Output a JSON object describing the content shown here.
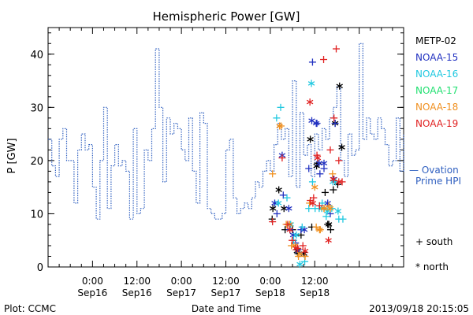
{
  "chart_data": {
    "type": "scatter",
    "title": "Hemispheric Power [GW]",
    "ylabel": "P [GW]",
    "xlabel": "Date and Time",
    "xlim": [
      -12,
      84
    ],
    "ylim": [
      0,
      45
    ],
    "yticks": [
      0,
      10,
      20,
      30,
      40
    ],
    "xticks": [
      {
        "x": 0,
        "time": "0:00",
        "date": "Sep16"
      },
      {
        "x": 12,
        "time": "12:00",
        "date": "Sep16"
      },
      {
        "x": 24,
        "time": "0:00",
        "date": "Sep17"
      },
      {
        "x": 36,
        "time": "12:00",
        "date": "Sep17"
      },
      {
        "x": 48,
        "time": "0:00",
        "date": "Sep18"
      },
      {
        "x": 60,
        "time": "12:00",
        "date": "Sep18"
      }
    ],
    "ovation": {
      "name": "Ovation Prime HPI",
      "label_line1": "— Ovation",
      "label_line2": "Prime HPI",
      "color": "#3060c0",
      "x": [
        -12,
        -11,
        -10,
        -9,
        -8,
        -7,
        -6,
        -5,
        -4,
        -3,
        -2,
        -1,
        0,
        1,
        2,
        3,
        4,
        5,
        6,
        7,
        8,
        9,
        10,
        11,
        12,
        13,
        14,
        15,
        16,
        17,
        18,
        19,
        20,
        21,
        22,
        23,
        24,
        25,
        26,
        27,
        28,
        29,
        30,
        31,
        32,
        33,
        34,
        35,
        36,
        37,
        38,
        39,
        40,
        41,
        42,
        43,
        44,
        45,
        46,
        47,
        48,
        49,
        50,
        51,
        52,
        53,
        54,
        55,
        56,
        57,
        58,
        59,
        60,
        61,
        62,
        63,
        64,
        65,
        66,
        67,
        68,
        69,
        70,
        71,
        72,
        73,
        74,
        75,
        76,
        77,
        78,
        79,
        80,
        81,
        82,
        83,
        84
      ],
      "values": [
        24,
        19,
        17,
        24,
        26,
        20,
        20,
        12,
        22,
        25,
        22,
        23,
        15,
        9,
        20,
        30,
        11,
        19,
        23,
        19,
        20,
        18,
        9,
        26,
        10,
        11,
        22,
        20,
        26,
        41,
        30,
        16,
        28,
        25,
        27,
        26,
        22,
        20,
        28,
        18,
        12,
        29,
        27,
        11,
        10,
        9,
        9,
        10,
        22,
        24,
        13,
        10,
        11,
        12,
        11,
        13,
        16,
        15,
        18,
        20,
        18,
        23,
        27,
        24,
        26,
        17,
        35,
        15,
        29,
        21,
        23,
        17,
        25,
        22,
        26,
        24,
        28,
        30,
        34,
        20,
        17,
        25,
        21,
        22,
        42,
        24,
        28,
        25,
        24,
        28,
        26,
        23,
        19,
        20,
        28,
        18,
        25
      ]
    },
    "series": [
      {
        "name": "METP-02",
        "color": "#000000",
        "south": [
          [
            48.5,
            9
          ],
          [
            52,
            7
          ],
          [
            54,
            7
          ],
          [
            55.5,
            2.5
          ],
          [
            56.3,
            6
          ],
          [
            59.2,
            7.5
          ],
          [
            60.8,
            19.5
          ],
          [
            62.8,
            14
          ],
          [
            63.5,
            8
          ],
          [
            64.3,
            7
          ],
          [
            65,
            14.5
          ],
          [
            66.2,
            15.5
          ]
        ],
        "north": [
          [
            48.7,
            11
          ],
          [
            50.3,
            14.5
          ],
          [
            51.7,
            11
          ],
          [
            55.2,
            3
          ],
          [
            57.1,
            2.5
          ],
          [
            58.8,
            24
          ],
          [
            60.5,
            19
          ],
          [
            63.8,
            8
          ],
          [
            65.5,
            27
          ],
          [
            66.7,
            34
          ],
          [
            67.3,
            22.5
          ]
        ]
      },
      {
        "name": "NOAA-15",
        "color": "#2030c0",
        "south": [
          [
            49.8,
            10
          ],
          [
            51.5,
            13.5
          ],
          [
            53.3,
            7
          ],
          [
            54.8,
            4.5
          ],
          [
            56.3,
            7
          ],
          [
            58.4,
            18.5
          ],
          [
            59.4,
            38.5
          ],
          [
            60.6,
            27
          ],
          [
            61.4,
            17.5
          ],
          [
            62.5,
            18.5
          ],
          [
            64.2,
            10
          ],
          [
            65.5,
            27
          ]
        ],
        "north": [
          [
            49.2,
            12
          ],
          [
            51.2,
            21
          ],
          [
            53,
            11
          ],
          [
            54.2,
            6
          ],
          [
            55.6,
            3
          ],
          [
            57.2,
            7
          ],
          [
            59.2,
            27.5
          ],
          [
            60.4,
            27
          ],
          [
            61.2,
            19.5
          ],
          [
            62.5,
            19.5
          ],
          [
            63.5,
            12
          ],
          [
            65.2,
            16.5
          ]
        ]
      },
      {
        "name": "NOAA-16",
        "color": "#20c8e0",
        "south": [
          [
            49.7,
            28
          ],
          [
            50.8,
            30
          ],
          [
            52.5,
            13
          ],
          [
            54.3,
            5
          ],
          [
            56.6,
            7.5
          ],
          [
            57.3,
            1
          ],
          [
            58.4,
            11
          ],
          [
            59.4,
            16
          ],
          [
            60.1,
            11
          ],
          [
            61.2,
            11
          ],
          [
            62,
            12
          ],
          [
            63.1,
            9.5
          ],
          [
            64.6,
            11
          ],
          [
            65.6,
            16
          ],
          [
            66.5,
            9
          ],
          [
            67.6,
            9
          ]
        ],
        "north": [
          [
            50.2,
            12
          ],
          [
            53.5,
            8
          ],
          [
            55,
            6
          ],
          [
            56,
            0.5
          ],
          [
            59.1,
            34.5
          ],
          [
            61.9,
            11
          ],
          [
            63.4,
            10.5
          ],
          [
            64.9,
            16
          ],
          [
            66.3,
            10.5
          ]
        ]
      },
      {
        "name": "NOAA-17",
        "color": "#20e070",
        "south": [],
        "north": []
      },
      {
        "name": "NOAA-18",
        "color": "#f09020",
        "south": [
          [
            48.6,
            17.5
          ],
          [
            50.9,
            26.5
          ],
          [
            52.3,
            8
          ],
          [
            53.7,
            4
          ],
          [
            55.6,
            2
          ],
          [
            57.4,
            2
          ],
          [
            58.6,
            12
          ],
          [
            60.4,
            7.5
          ],
          [
            61.5,
            7
          ],
          [
            62.5,
            11
          ],
          [
            63.8,
            11.5
          ],
          [
            64.8,
            17.5
          ]
        ],
        "north": [
          [
            50.5,
            26.5
          ],
          [
            53.2,
            8
          ],
          [
            54.7,
            4
          ],
          [
            56,
            2.5
          ],
          [
            60,
            15
          ],
          [
            61.3,
            7
          ],
          [
            62.5,
            11
          ],
          [
            64.2,
            11
          ]
        ]
      },
      {
        "name": "NOAA-19",
        "color": "#e02020",
        "south": [
          [
            48.6,
            8.5
          ],
          [
            51.2,
            20.5
          ],
          [
            52.7,
            8
          ],
          [
            53.9,
            5
          ],
          [
            55.4,
            3.5
          ],
          [
            56.8,
            4
          ],
          [
            58.8,
            12.5
          ],
          [
            59.7,
            13
          ],
          [
            60.6,
            21
          ],
          [
            61.3,
            11.5
          ],
          [
            62.4,
            39
          ],
          [
            64.2,
            22
          ],
          [
            65.2,
            28
          ],
          [
            65.8,
            41
          ],
          [
            66.5,
            20
          ],
          [
            67.4,
            16
          ]
        ],
        "north": [
          [
            53.3,
            7
          ],
          [
            54.9,
            3.5
          ],
          [
            57.4,
            3
          ],
          [
            58.7,
            31
          ],
          [
            59.5,
            12
          ],
          [
            60.8,
            20.5
          ],
          [
            63.7,
            5
          ],
          [
            65,
            16.5
          ],
          [
            66.5,
            16
          ]
        ]
      }
    ],
    "marker_legend": {
      "south": "south",
      "north": "north",
      "south_symbol": "+",
      "north_symbol": "*"
    },
    "grid": false
  },
  "footer": {
    "plot_label": "Plot: CCMC",
    "timestamp": "2013/09/18 20:15:05"
  }
}
